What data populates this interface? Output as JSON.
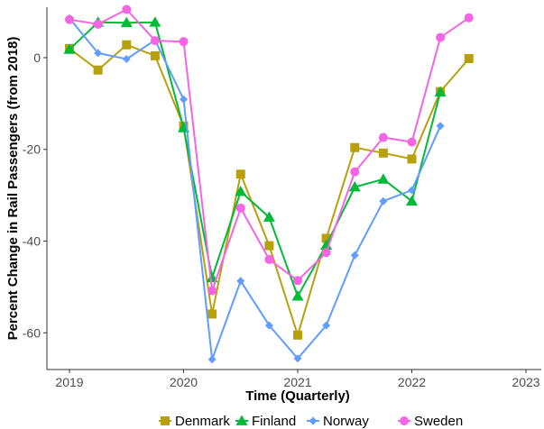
{
  "chart_data": {
    "type": "line",
    "xlabel": "Time (Quarterly)",
    "ylabel": "Percent Change in Rail Passengers (from 2018)",
    "xlim": [
      2019,
      2023
    ],
    "ylim": [
      -68,
      11
    ],
    "x_ticks": [
      2019,
      2020,
      2021,
      2022,
      2023
    ],
    "x_tick_labels": [
      "2019",
      "2020",
      "2021",
      "2022",
      "2023"
    ],
    "y_ticks": [
      0,
      -20,
      -40,
      -60
    ],
    "y_tick_labels": [
      "0",
      "-20",
      "-40",
      "-60"
    ],
    "grid": false,
    "legend_position": "bottom",
    "x": [
      2019.0,
      2019.25,
      2019.5,
      2019.75,
      2020.0,
      2020.25,
      2020.5,
      2020.75,
      2021.0,
      2021.25,
      2021.5,
      2021.75,
      2022.0,
      2022.25,
      2022.5
    ],
    "series": [
      {
        "name": "Denmark",
        "color": "#B8A00C",
        "marker": "square",
        "values": [
          2.0,
          -2.7,
          2.8,
          0.4,
          -14.9,
          -55.9,
          -25.4,
          -41.0,
          -60.5,
          -39.4,
          -19.6,
          -20.8,
          -22.1,
          -7.4,
          -0.2
        ]
      },
      {
        "name": "Finland",
        "color": "#00BA38",
        "marker": "triangle",
        "values": [
          1.8,
          7.7,
          7.6,
          7.7,
          -15.3,
          -48.0,
          -29.2,
          -34.8,
          -52.0,
          -40.9,
          -28.2,
          -26.5,
          -31.3,
          -7.5,
          null
        ]
      },
      {
        "name": "Norway",
        "color": "#619CFF",
        "marker": "diamond",
        "values": [
          8.6,
          1.0,
          -0.3,
          3.8,
          -9.1,
          -65.8,
          -48.7,
          -58.4,
          -65.6,
          -58.4,
          -43.1,
          -31.3,
          -28.9,
          -14.9,
          null
        ]
      },
      {
        "name": "Sweden",
        "color": "#F564E3",
        "marker": "circle",
        "values": [
          8.3,
          7.3,
          10.5,
          3.7,
          3.5,
          -50.8,
          -32.8,
          -44.0,
          -48.6,
          -42.5,
          -24.9,
          -17.4,
          -18.4,
          4.4,
          8.7
        ]
      }
    ]
  }
}
